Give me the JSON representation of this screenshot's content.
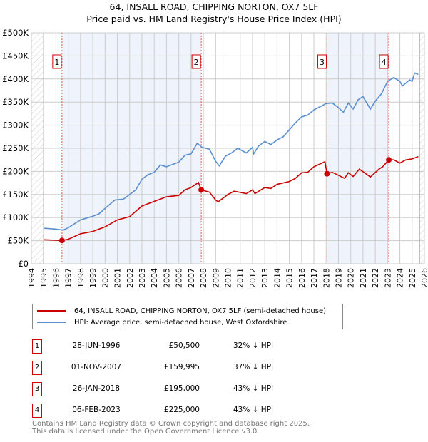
{
  "title": "64, INSALL ROAD, CHIPPING NORTON, OX7 5LF",
  "subtitle": "Price paid vs. HM Land Registry's House Price Index (HPI)",
  "chart_data": {
    "type": "line",
    "title": "64, INSALL ROAD, CHIPPING NORTON, OX7 5LF — Price paid vs. HM Land Registry's House Price Index (HPI)",
    "xlim": [
      1994,
      2026
    ],
    "ylim": [
      0,
      500000
    ],
    "x_ticks": [
      "1994",
      "1995",
      "1996",
      "1997",
      "1998",
      "1999",
      "2000",
      "2001",
      "2002",
      "2003",
      "2004",
      "2005",
      "2006",
      "2007",
      "2008",
      "2009",
      "2010",
      "2011",
      "2012",
      "2013",
      "2014",
      "2015",
      "2016",
      "2017",
      "2018",
      "2019",
      "2020",
      "2021",
      "2022",
      "2023",
      "2024",
      "2025",
      "2026"
    ],
    "y_ticks": [
      {
        "v": 0,
        "label": "£0"
      },
      {
        "v": 50000,
        "label": "£50K"
      },
      {
        "v": 100000,
        "label": "£100K"
      },
      {
        "v": 150000,
        "label": "£150K"
      },
      {
        "v": 200000,
        "label": "£200K"
      },
      {
        "v": 250000,
        "label": "£250K"
      },
      {
        "v": 300000,
        "label": "£300K"
      },
      {
        "v": 350000,
        "label": "£350K"
      },
      {
        "v": 400000,
        "label": "£400K"
      },
      {
        "v": 450000,
        "label": "£450K"
      },
      {
        "v": 500000,
        "label": "£500K"
      }
    ],
    "grid": true,
    "data_start": 1995,
    "data_end": 2025.6,
    "series": [
      {
        "name": "64, INSALL ROAD, CHIPPING NORTON, OX7 5LF (semi-detached house)",
        "color": "#cc0000",
        "points": [
          [
            1995,
            52
          ],
          [
            1996.49,
            50.5
          ],
          [
            1997,
            53
          ],
          [
            1998,
            65
          ],
          [
            1999,
            70
          ],
          [
            2000,
            80
          ],
          [
            2001,
            95
          ],
          [
            2002,
            102
          ],
          [
            2003,
            125
          ],
          [
            2004,
            135
          ],
          [
            2005,
            145
          ],
          [
            2006,
            148
          ],
          [
            2006.5,
            160
          ],
          [
            2007,
            165
          ],
          [
            2007.6,
            176
          ],
          [
            2007.83,
            160
          ],
          [
            2008.5,
            155
          ],
          [
            2009,
            138
          ],
          [
            2009.2,
            134
          ],
          [
            2010,
            150
          ],
          [
            2010.5,
            157
          ],
          [
            2011.5,
            152
          ],
          [
            2012,
            160
          ],
          [
            2012.2,
            152
          ],
          [
            2013,
            165
          ],
          [
            2013.5,
            163
          ],
          [
            2014,
            172
          ],
          [
            2015,
            178
          ],
          [
            2015.5,
            185
          ],
          [
            2016,
            197
          ],
          [
            2016.5,
            198
          ],
          [
            2017,
            210
          ],
          [
            2017.9,
            221
          ],
          [
            2018.07,
            195
          ],
          [
            2018.5,
            198
          ],
          [
            2019.5,
            185
          ],
          [
            2019.8,
            197
          ],
          [
            2020.2,
            189
          ],
          [
            2020.7,
            205
          ],
          [
            2021.6,
            188
          ],
          [
            2022.3,
            205
          ],
          [
            2022.6,
            210
          ],
          [
            2023.1,
            225
          ],
          [
            2023.5,
            225
          ],
          [
            2024,
            218
          ],
          [
            2024.5,
            225
          ],
          [
            2025,
            227
          ],
          [
            2025.5,
            232
          ]
        ]
      },
      {
        "name": "HPI: Average price, semi-detached house, West Oxfordshire",
        "color": "#5b8fd0",
        "points": [
          [
            1995,
            77
          ],
          [
            1996,
            75
          ],
          [
            1996.6,
            73
          ],
          [
            1997,
            78
          ],
          [
            1998,
            95
          ],
          [
            1999,
            103
          ],
          [
            1999.5,
            108
          ],
          [
            2000,
            120
          ],
          [
            2000.8,
            138
          ],
          [
            2001.5,
            140
          ],
          [
            2002,
            150
          ],
          [
            2002.5,
            160
          ],
          [
            2003,
            183
          ],
          [
            2003.5,
            193
          ],
          [
            2004,
            198
          ],
          [
            2004.5,
            214
          ],
          [
            2005,
            210
          ],
          [
            2005.5,
            215
          ],
          [
            2006,
            220
          ],
          [
            2006.5,
            235
          ],
          [
            2007,
            238
          ],
          [
            2007.5,
            261
          ],
          [
            2007.9,
            252
          ],
          [
            2008.5,
            248
          ],
          [
            2009,
            222
          ],
          [
            2009.3,
            212
          ],
          [
            2009.8,
            233
          ],
          [
            2010.3,
            240
          ],
          [
            2010.8,
            250
          ],
          [
            2011.5,
            240
          ],
          [
            2012,
            252
          ],
          [
            2012.1,
            238
          ],
          [
            2012.5,
            255
          ],
          [
            2013,
            265
          ],
          [
            2013.5,
            258
          ],
          [
            2014,
            268
          ],
          [
            2014.5,
            275
          ],
          [
            2015,
            290
          ],
          [
            2015.5,
            305
          ],
          [
            2016,
            318
          ],
          [
            2016.5,
            322
          ],
          [
            2017,
            333
          ],
          [
            2017.5,
            340
          ],
          [
            2018,
            347
          ],
          [
            2018.5,
            348
          ],
          [
            2019,
            338
          ],
          [
            2019.4,
            328
          ],
          [
            2019.8,
            348
          ],
          [
            2020.2,
            335
          ],
          [
            2020.6,
            355
          ],
          [
            2021,
            362
          ],
          [
            2021.6,
            335
          ],
          [
            2022,
            352
          ],
          [
            2022.5,
            368
          ],
          [
            2023,
            395
          ],
          [
            2023.5,
            403
          ],
          [
            2024,
            395
          ],
          [
            2024.2,
            385
          ],
          [
            2024.8,
            398
          ],
          [
            2025,
            395
          ],
          [
            2025.2,
            413
          ],
          [
            2025.5,
            410
          ]
        ]
      }
    ],
    "sales": [
      {
        "n": "1",
        "x": 1996.49,
        "y": 50500
      },
      {
        "n": "2",
        "x": 2007.83,
        "y": 159995
      },
      {
        "n": "3",
        "x": 2018.07,
        "y": 195000
      },
      {
        "n": "4",
        "x": 2023.1,
        "y": 225000
      }
    ],
    "shaded_ranges": [
      [
        1996.49,
        2007.83
      ],
      [
        2018.07,
        2023.1
      ]
    ]
  },
  "legend": [
    "64, INSALL ROAD, CHIPPING NORTON, OX7 5LF (semi-detached house)",
    "HPI: Average price, semi-detached house, West Oxfordshire"
  ],
  "transactions": [
    {
      "n": "1",
      "date": "28-JUN-1996",
      "price": "£50,500",
      "hpi": "32% ↓ HPI"
    },
    {
      "n": "2",
      "date": "01-NOV-2007",
      "price": "£159,995",
      "hpi": "37% ↓ HPI"
    },
    {
      "n": "3",
      "date": "26-JAN-2018",
      "price": "£195,000",
      "hpi": "43% ↓ HPI"
    },
    {
      "n": "4",
      "date": "06-FEB-2023",
      "price": "£225,000",
      "hpi": "43% ↓ HPI"
    }
  ],
  "footer": [
    "Contains HM Land Registry data © Crown copyright and database right 2025.",
    "This data is licensed under the Open Government Licence v3.0."
  ]
}
